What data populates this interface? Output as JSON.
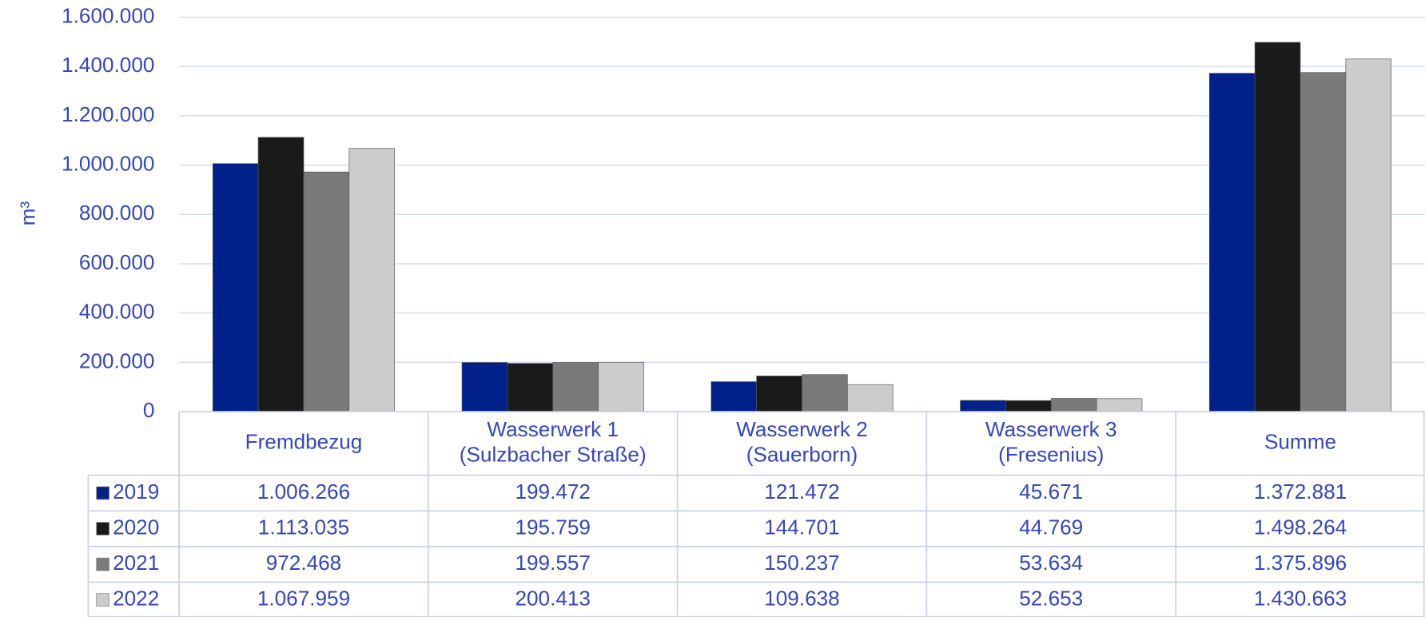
{
  "chart_data": {
    "type": "bar",
    "ylabel": "m³",
    "categories": [
      "Fremdbezug",
      "Wasserwerk 1\n(Sulzbacher Straße)",
      "Wasserwerk 2\n(Sauerborn)",
      "Wasserwerk 3\n(Fresenius)",
      "Summe"
    ],
    "series": [
      {
        "name": "2019",
        "color": "#00208a",
        "values": [
          1006266,
          199472,
          121472,
          45671,
          1372881
        ],
        "value_labels": [
          "1.006.266",
          "199.472",
          "121.472",
          "45.671",
          "1.372.881"
        ]
      },
      {
        "name": "2020",
        "color": "#1a1a1a",
        "values": [
          1113035,
          195759,
          144701,
          44769,
          1498264
        ],
        "value_labels": [
          "1.113.035",
          "195.759",
          "144.701",
          "44.769",
          "1.498.264"
        ]
      },
      {
        "name": "2021",
        "color": "#7a7a7a",
        "values": [
          972468,
          199557,
          150237,
          53634,
          1375896
        ],
        "value_labels": [
          "972.468",
          "199.557",
          "150.237",
          "53.634",
          "1.375.896"
        ]
      },
      {
        "name": "2022",
        "color": "#cccccc",
        "values": [
          1067959,
          200413,
          109638,
          52653,
          1430663
        ],
        "value_labels": [
          "1.067.959",
          "200.413",
          "109.638",
          "52.653",
          "1.430.663"
        ]
      }
    ],
    "ylim": [
      0,
      1600000
    ],
    "yticks": [
      0,
      {
        "value": 200000,
        "label": "200.000"
      },
      {
        "value": 400000,
        "label": "400.000"
      },
      {
        "value": 600000,
        "label": "600.000"
      },
      {
        "value": 800000,
        "label": "800.000"
      },
      {
        "value": 1000000,
        "label": "1.000.000"
      },
      {
        "value": 1200000,
        "label": "1.200.000"
      },
      {
        "value": 1400000,
        "label": "1.400.000"
      },
      {
        "value": 1600000,
        "label": "1.600.000"
      }
    ],
    "grid": true
  }
}
